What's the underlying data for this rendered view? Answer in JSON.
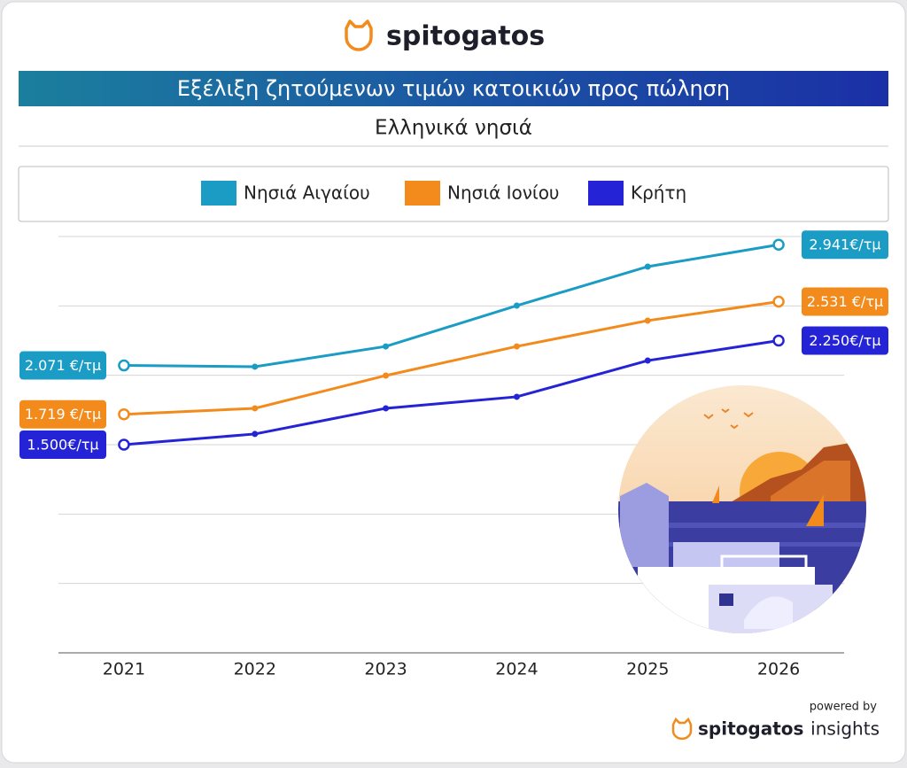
{
  "header": {
    "brand": "spitogatos"
  },
  "chart_data": {
    "type": "line",
    "title": "Εξέλιξη ζητούμενων τιμών κατοικιών προς πώληση",
    "subtitle": "Ελληνικά νησιά",
    "categories": [
      "2021",
      "2022",
      "2023",
      "2024",
      "2025",
      "2026"
    ],
    "ylim": [
      0,
      3000
    ],
    "yticks": [
      0,
      500,
      1000,
      1500,
      2000,
      2500,
      3000
    ],
    "grid": true,
    "series": [
      {
        "name": "Νησιά Αιγαίου",
        "color": "#1a9cc4",
        "values": [
          2071,
          2062,
          2208,
          2502,
          2783,
          2941
        ],
        "value_labels": [
          "2.071 €/τμ",
          null,
          null,
          null,
          null,
          "2.941€/τμ"
        ]
      },
      {
        "name": "Νησιά Ιονίου",
        "color": "#f28a1c",
        "values": [
          1719,
          1762,
          1998,
          2208,
          2394,
          2531
        ],
        "value_labels": [
          "1.719 €/τμ",
          null,
          null,
          null,
          null,
          "2.531 €/τμ"
        ]
      },
      {
        "name": "Κρήτη",
        "color": "#2424d6",
        "values": [
          1500,
          1577,
          1762,
          1845,
          2106,
          2250
        ],
        "value_labels": [
          "1.500€/τμ",
          null,
          null,
          null,
          null,
          "2.250€/τμ"
        ]
      }
    ]
  },
  "footer": {
    "powered": "powered by",
    "brand": "spitogatos",
    "product": "insights"
  }
}
